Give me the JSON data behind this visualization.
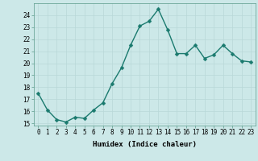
{
  "x": [
    0,
    1,
    2,
    3,
    4,
    5,
    6,
    7,
    8,
    9,
    10,
    11,
    12,
    13,
    14,
    15,
    16,
    17,
    18,
    19,
    20,
    21,
    22,
    23
  ],
  "y": [
    17.5,
    16.1,
    15.3,
    15.1,
    15.5,
    15.4,
    16.1,
    16.7,
    18.3,
    19.6,
    21.5,
    23.1,
    23.5,
    24.5,
    22.8,
    20.8,
    20.8,
    21.5,
    20.4,
    20.7,
    21.5,
    20.8,
    20.2,
    20.1
  ],
  "line_color": "#1a7a6e",
  "marker_color": "#1a7a6e",
  "bg_color": "#cce8e8",
  "grid_color": "#b8d8d8",
  "xlabel": "Humidex (Indice chaleur)",
  "ylim": [
    14.8,
    25.0
  ],
  "xlim": [
    -0.5,
    23.5
  ],
  "yticks": [
    15,
    16,
    17,
    18,
    19,
    20,
    21,
    22,
    23,
    24
  ],
  "xticks": [
    0,
    1,
    2,
    3,
    4,
    5,
    6,
    7,
    8,
    9,
    10,
    11,
    12,
    13,
    14,
    15,
    16,
    17,
    18,
    19,
    20,
    21,
    22,
    23
  ],
  "xtick_labels": [
    "0",
    "1",
    "2",
    "3",
    "4",
    "5",
    "6",
    "7",
    "8",
    "9",
    "10",
    "11",
    "12",
    "13",
    "14",
    "15",
    "16",
    "17",
    "18",
    "19",
    "20",
    "21",
    "22",
    "23"
  ],
  "xlabel_fontsize": 6.5,
  "tick_fontsize": 5.5,
  "line_width": 1.0,
  "marker_size": 2.5
}
